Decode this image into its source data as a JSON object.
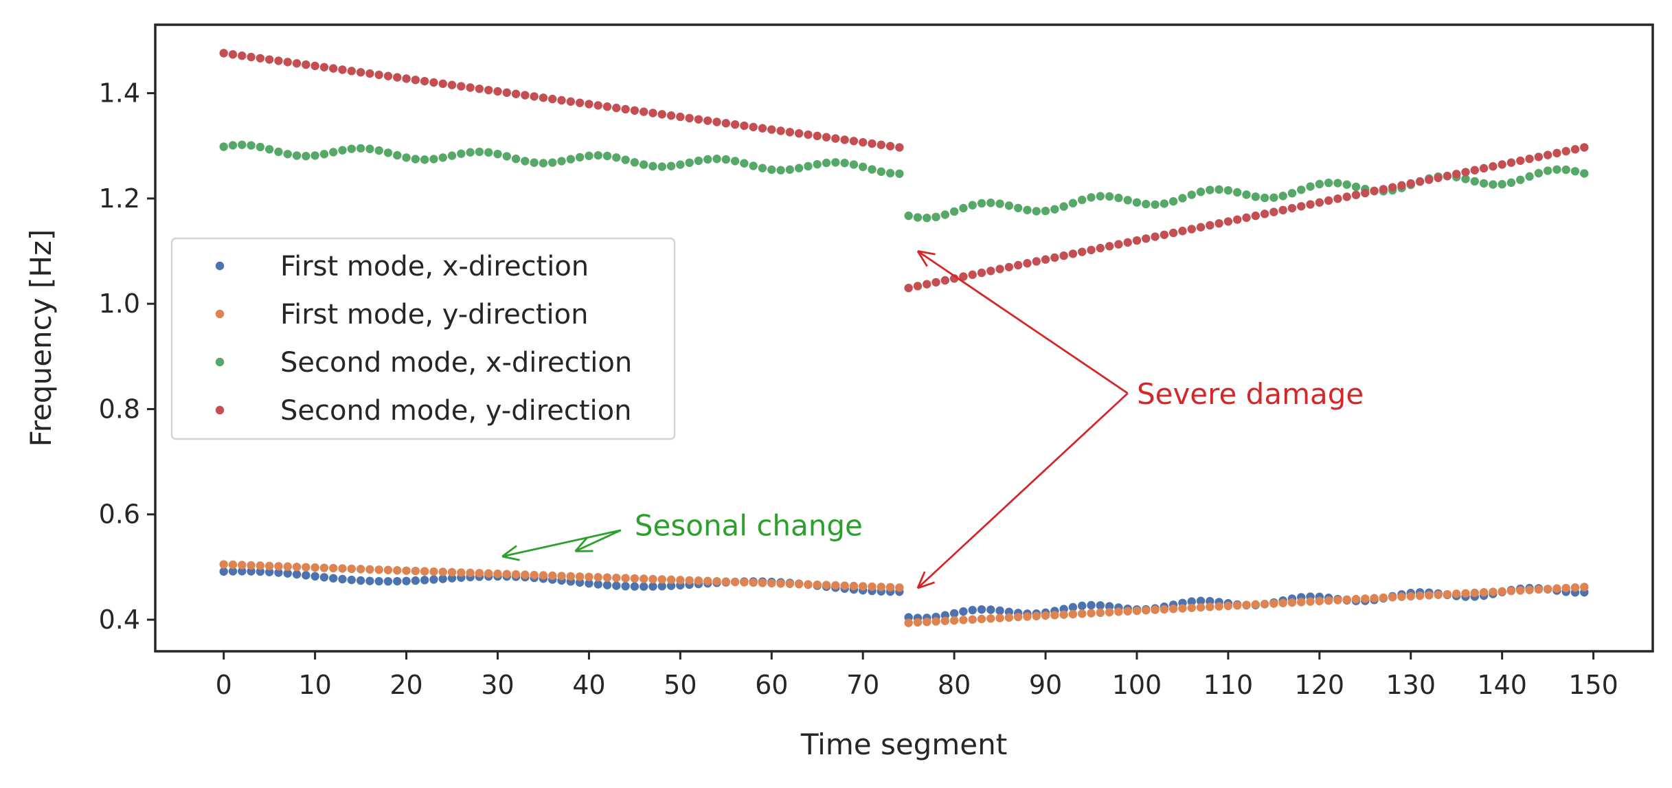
{
  "chart_data": {
    "type": "scatter",
    "xlabel": "Time segment",
    "ylabel": "Frequency [Hz]",
    "xlim": [
      -7.5,
      156.5
    ],
    "ylim": [
      0.34,
      1.53
    ],
    "xticks": [
      0,
      10,
      20,
      30,
      40,
      50,
      60,
      70,
      80,
      90,
      100,
      110,
      120,
      130,
      140,
      150
    ],
    "yticks": [
      0.4,
      0.6,
      0.8,
      1.0,
      1.2,
      1.4
    ],
    "ytick_labels": [
      "0.4",
      "0.6",
      "0.8",
      "1.0",
      "1.2",
      "1.4"
    ],
    "grid": false,
    "legend_position": "center-left",
    "series": [
      {
        "name": "First mode, x-direction",
        "color": "#4c72b0",
        "segments": [
          {
            "x_start": 0,
            "x_end": 74,
            "base_start": 0.486,
            "base_end": 0.46,
            "amplitude": 0.007,
            "period": 28,
            "phase": 0.9
          },
          {
            "x_start": 75,
            "x_end": 149,
            "base_start": 0.408,
            "base_end": 0.458,
            "amplitude": 0.006,
            "period": 12,
            "phase": 2.2
          }
        ]
      },
      {
        "name": "First mode, y-direction",
        "color": "#dd8452",
        "segments": [
          {
            "x_start": 0,
            "x_end": 74,
            "base_start": 0.505,
            "base_end": 0.461,
            "amplitude": 0.0,
            "period": 30,
            "phase": 0
          },
          {
            "x_start": 75,
            "x_end": 149,
            "base_start": 0.394,
            "base_end": 0.462,
            "amplitude": 0.0,
            "period": 30,
            "phase": 0
          }
        ]
      },
      {
        "name": "Second mode, x-direction",
        "color": "#55a868",
        "segments": [
          {
            "x_start": 0,
            "x_end": 74,
            "base_start": 1.294,
            "base_end": 1.256,
            "amplitude": 0.009,
            "period": 13,
            "phase": 0.5
          },
          {
            "x_start": 75,
            "x_end": 149,
            "base_start": 1.172,
            "base_end": 1.247,
            "amplitude": 0.011,
            "period": 12.5,
            "phase": 3.6
          }
        ]
      },
      {
        "name": "Second mode, y-direction",
        "color": "#c44e52",
        "segments": [
          {
            "x_start": 0,
            "x_end": 74,
            "base_start": 1.476,
            "base_end": 1.297,
            "amplitude": 0.0,
            "period": 30,
            "phase": 0
          },
          {
            "x_start": 75,
            "x_end": 149,
            "base_start": 1.03,
            "base_end": 1.297,
            "amplitude": 0.0,
            "period": 30,
            "phase": 0
          }
        ]
      }
    ],
    "annotations": [
      {
        "text": "Severe damage",
        "color": "#d62728",
        "text_pos": [
          100,
          0.81
        ],
        "arrow_from": [
          99,
          0.83
        ],
        "arrow_targets": [
          [
            76,
            1.1
          ],
          [
            76,
            0.46
          ]
        ]
      },
      {
        "text": "Sesonal change",
        "color": "#2ca02c",
        "text_pos": [
          45,
          0.56
        ],
        "arrow_from": [
          43.5,
          0.57
        ],
        "arrow_targets": [
          [
            30.5,
            0.52
          ],
          [
            38.5,
            0.53
          ]
        ]
      }
    ]
  }
}
